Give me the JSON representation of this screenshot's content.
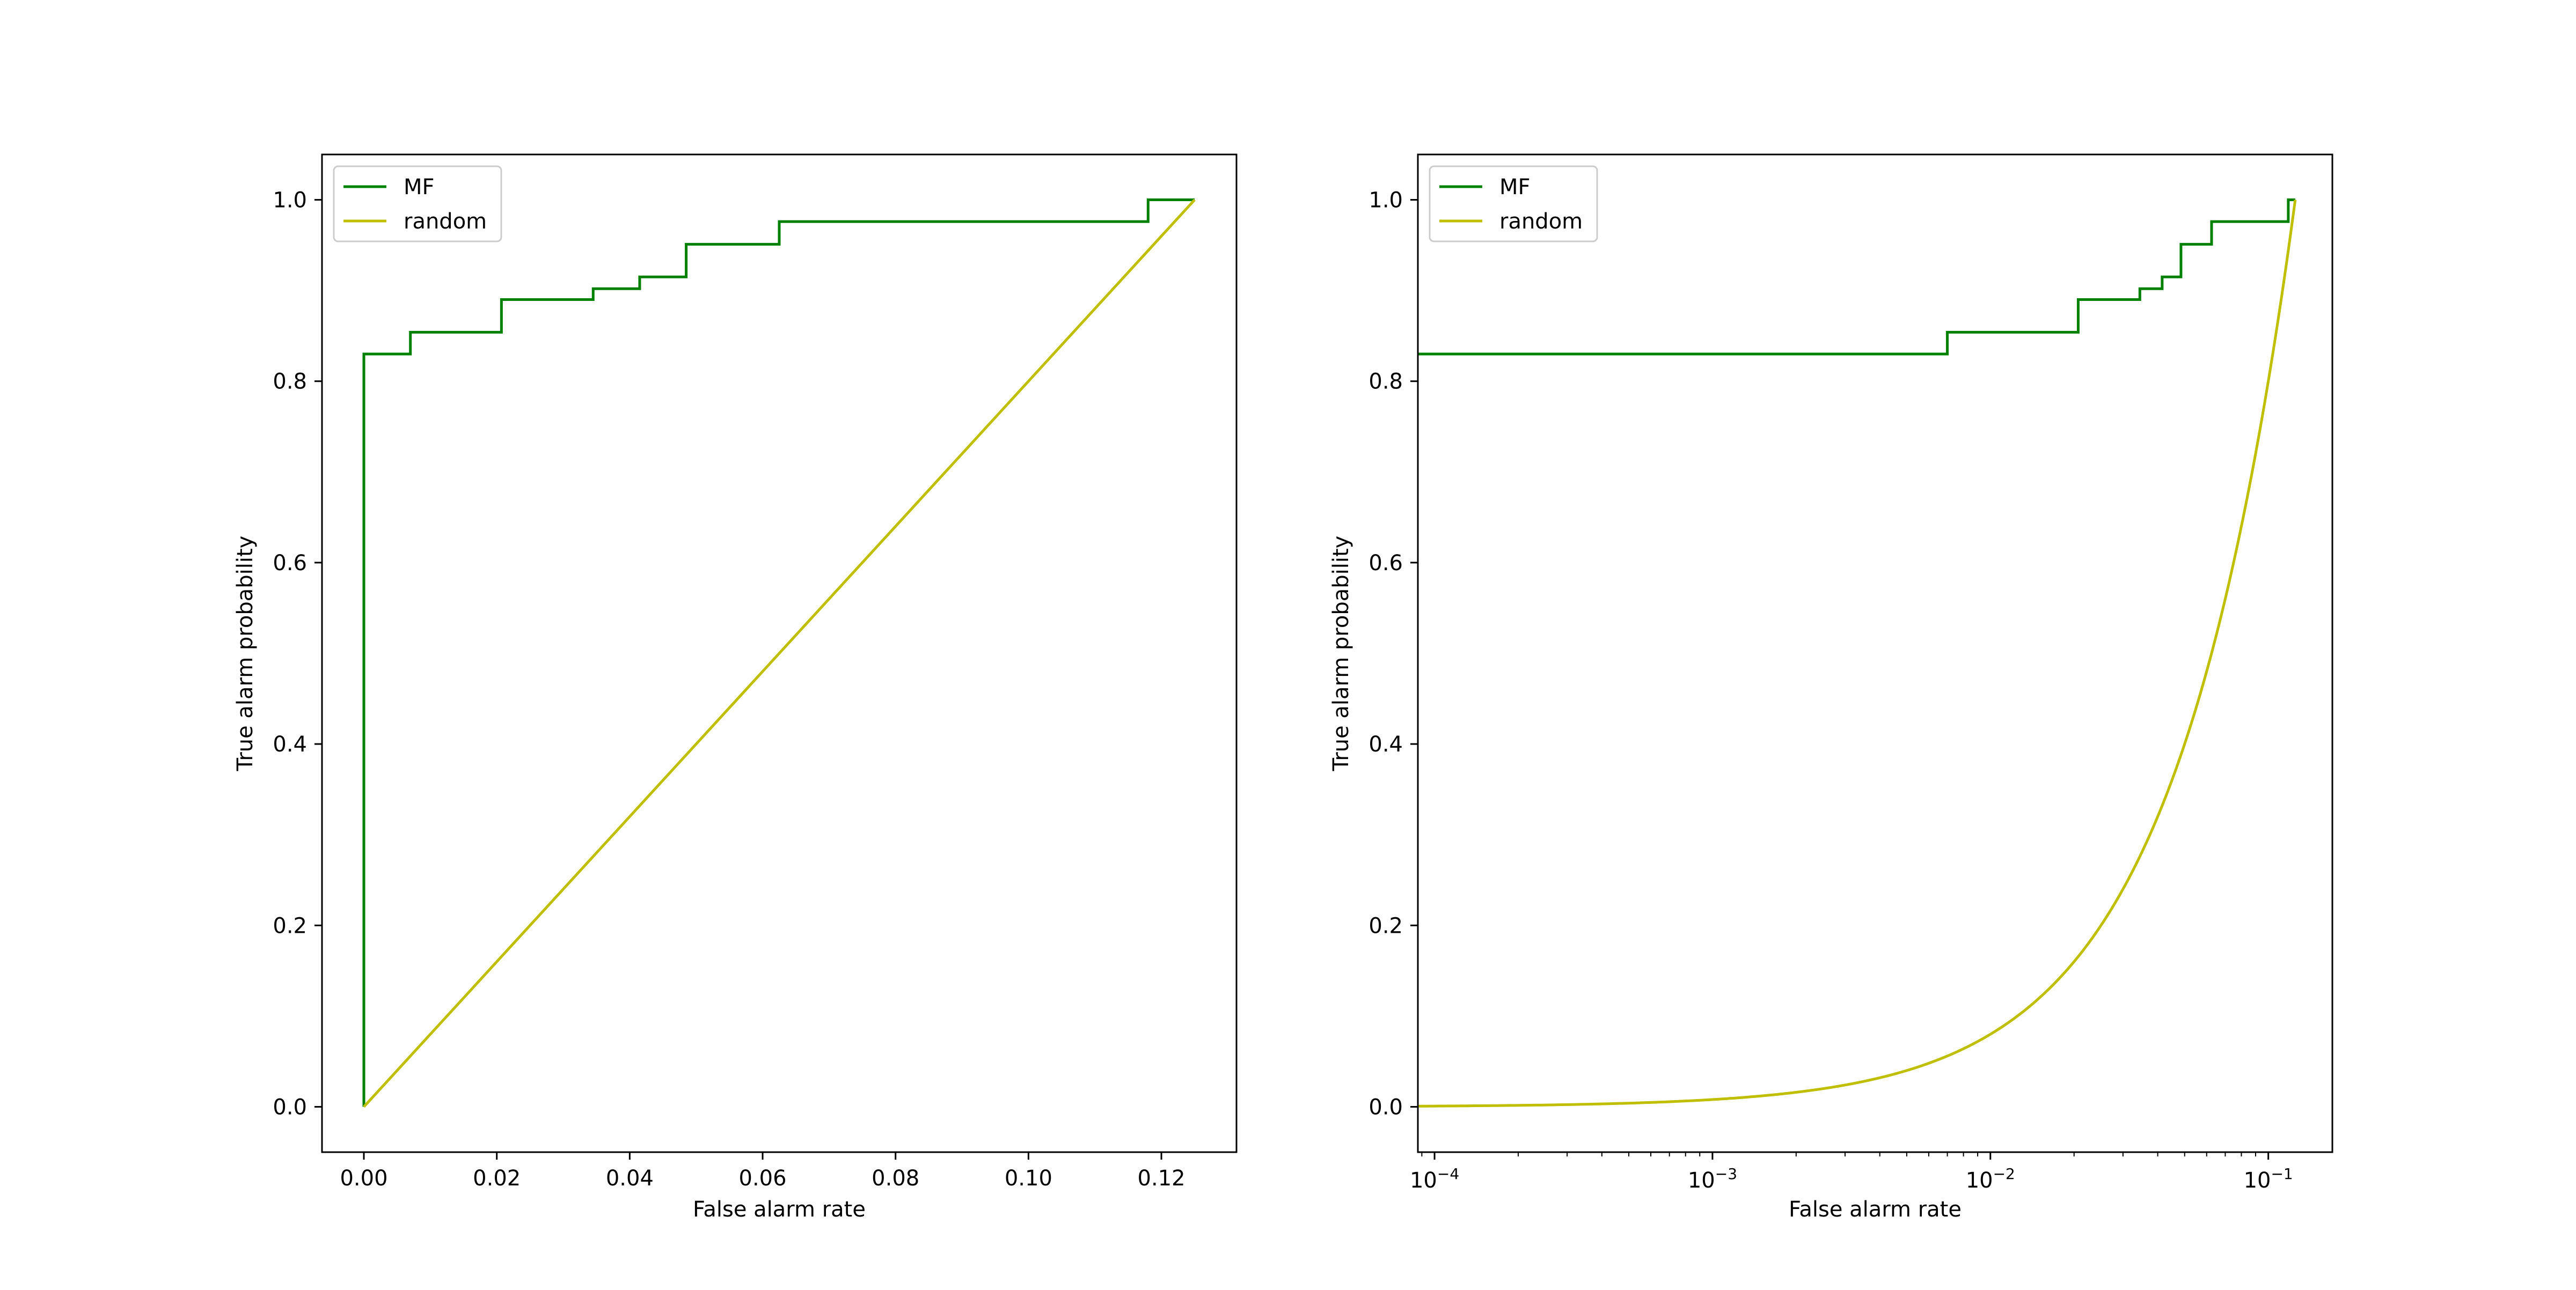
{
  "chart_data": [
    {
      "type": "line",
      "xlabel": "False alarm rate",
      "ylabel": "True alarm probability",
      "xscale": "linear",
      "xlim": [
        -0.0063,
        0.1313
      ],
      "ylim": [
        -0.05,
        1.05
      ],
      "xticks": [
        0.0,
        0.02,
        0.04,
        0.06,
        0.08,
        0.1,
        0.12
      ],
      "xtick_labels": [
        "0.00",
        "0.02",
        "0.04",
        "0.06",
        "0.08",
        "0.10",
        "0.12"
      ],
      "yticks": [
        0.0,
        0.2,
        0.4,
        0.6,
        0.8,
        1.0
      ],
      "ytick_labels": [
        "0.0",
        "0.2",
        "0.4",
        "0.6",
        "0.8",
        "1.0"
      ],
      "grid": false,
      "legend_position": "top-left",
      "series": [
        {
          "name": "MF",
          "color": "#008000",
          "drawstyle": "steps",
          "x": [
            0.0,
            0.0,
            0.007,
            0.007,
            0.0207,
            0.0207,
            0.0345,
            0.0345,
            0.0415,
            0.0415,
            0.0485,
            0.0485,
            0.0625,
            0.0625,
            0.118,
            0.118,
            0.125
          ],
          "y": [
            0.0,
            0.83,
            0.83,
            0.854,
            0.854,
            0.89,
            0.89,
            0.902,
            0.902,
            0.915,
            0.915,
            0.951,
            0.951,
            0.976,
            0.976,
            1.0,
            1.0
          ]
        },
        {
          "name": "random",
          "color": "#bfbf00",
          "x": [
            0.0,
            0.125
          ],
          "y": [
            0.0,
            1.0
          ]
        }
      ]
    },
    {
      "type": "line",
      "xlabel": "False alarm rate",
      "ylabel": "True alarm probability",
      "xscale": "log",
      "xlim": [
        8.71e-05,
        0.17
      ],
      "ylim": [
        -0.05,
        1.05
      ],
      "xticks": [
        0.0001,
        0.001,
        0.01,
        0.1
      ],
      "xtick_labels": [
        {
          "base": "10",
          "exp": "−4"
        },
        {
          "base": "10",
          "exp": "−3"
        },
        {
          "base": "10",
          "exp": "−2"
        },
        {
          "base": "10",
          "exp": "−1"
        }
      ],
      "yticks": [
        0.0,
        0.2,
        0.4,
        0.6,
        0.8,
        1.0
      ],
      "ytick_labels": [
        "0.0",
        "0.2",
        "0.4",
        "0.6",
        "0.8",
        "1.0"
      ],
      "grid": false,
      "legend_position": "top-left",
      "series": [
        {
          "name": "MF",
          "color": "#008000",
          "drawstyle": "steps",
          "x": [
            8.71e-05,
            0.007,
            0.007,
            0.0207,
            0.0207,
            0.0345,
            0.0345,
            0.0415,
            0.0415,
            0.0485,
            0.0485,
            0.0625,
            0.0625,
            0.118,
            0.118,
            0.125
          ],
          "y": [
            0.83,
            0.83,
            0.854,
            0.854,
            0.89,
            0.89,
            0.902,
            0.902,
            0.915,
            0.915,
            0.951,
            0.951,
            0.976,
            0.976,
            1.0,
            1.0
          ]
        },
        {
          "name": "random",
          "color": "#bfbf00",
          "x": [
            8.71e-05,
            0.0002,
            0.0005,
            0.001,
            0.002,
            0.005,
            0.01,
            0.02,
            0.03,
            0.05,
            0.07,
            0.1,
            0.125
          ],
          "y": [
            0.0007,
            0.0016,
            0.004,
            0.008,
            0.016,
            0.04,
            0.08,
            0.16,
            0.24,
            0.4,
            0.56,
            0.8,
            1.0
          ]
        }
      ]
    }
  ]
}
